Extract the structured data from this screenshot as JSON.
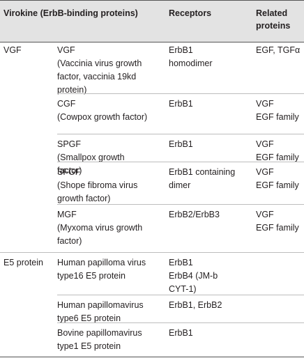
{
  "headers": {
    "virokine": "Virokine (ErbB-binding proteins)",
    "receptors": "Receptors",
    "related_l1": "Related",
    "related_l2": "proteins"
  },
  "groups": [
    {
      "name": "VGF",
      "rows": [
        {
          "virokine": [
            "VGF",
            "(Vaccinia virus growth",
            "factor, vaccinia 19kd",
            "protein)"
          ],
          "receptors": [
            "ErbB1",
            "homodimer"
          ],
          "related": [
            "EGF, TGFα"
          ]
        },
        {
          "virokine": [
            "CGF",
            "(Cowpox growth factor)"
          ],
          "receptors": [
            "ErbB1"
          ],
          "related": [
            "VGF",
            "EGF family"
          ]
        },
        {
          "virokine": [
            "SPGF",
            "(Smallpox growth",
            "factor)"
          ],
          "receptors": [
            "ErbB1"
          ],
          "related": [
            "VGF",
            "EGF family"
          ]
        },
        {
          "virokine": [
            "SFGF",
            "(Shope fibroma virus",
            "growth factor)"
          ],
          "receptors": [
            "ErbB1 containing",
            "dimer"
          ],
          "related": [
            "VGF",
            "EGF family"
          ]
        },
        {
          "virokine": [
            "MGF",
            "(Myxoma virus growth",
            "factor)"
          ],
          "receptors": [
            "ErbB2/ErbB3"
          ],
          "related": [
            "VGF",
            "EGF family"
          ]
        }
      ]
    },
    {
      "name": "E5 protein",
      "rows": [
        {
          "virokine": [
            "Human papilloma virus",
            "type16 E5 protein"
          ],
          "receptors": [
            "ErbB1",
            "ErbB4 (JM-b",
            "CYT-1)"
          ],
          "related": []
        },
        {
          "virokine": [
            "Human papillomavirus",
            "type6 E5 protein"
          ],
          "receptors": [
            "ErbB1, ErbB2"
          ],
          "related": []
        },
        {
          "virokine": [
            "Bovine papillomavirus",
            "type1 E5 protein"
          ],
          "receptors": [
            "ErbB1"
          ],
          "related": []
        }
      ]
    }
  ]
}
